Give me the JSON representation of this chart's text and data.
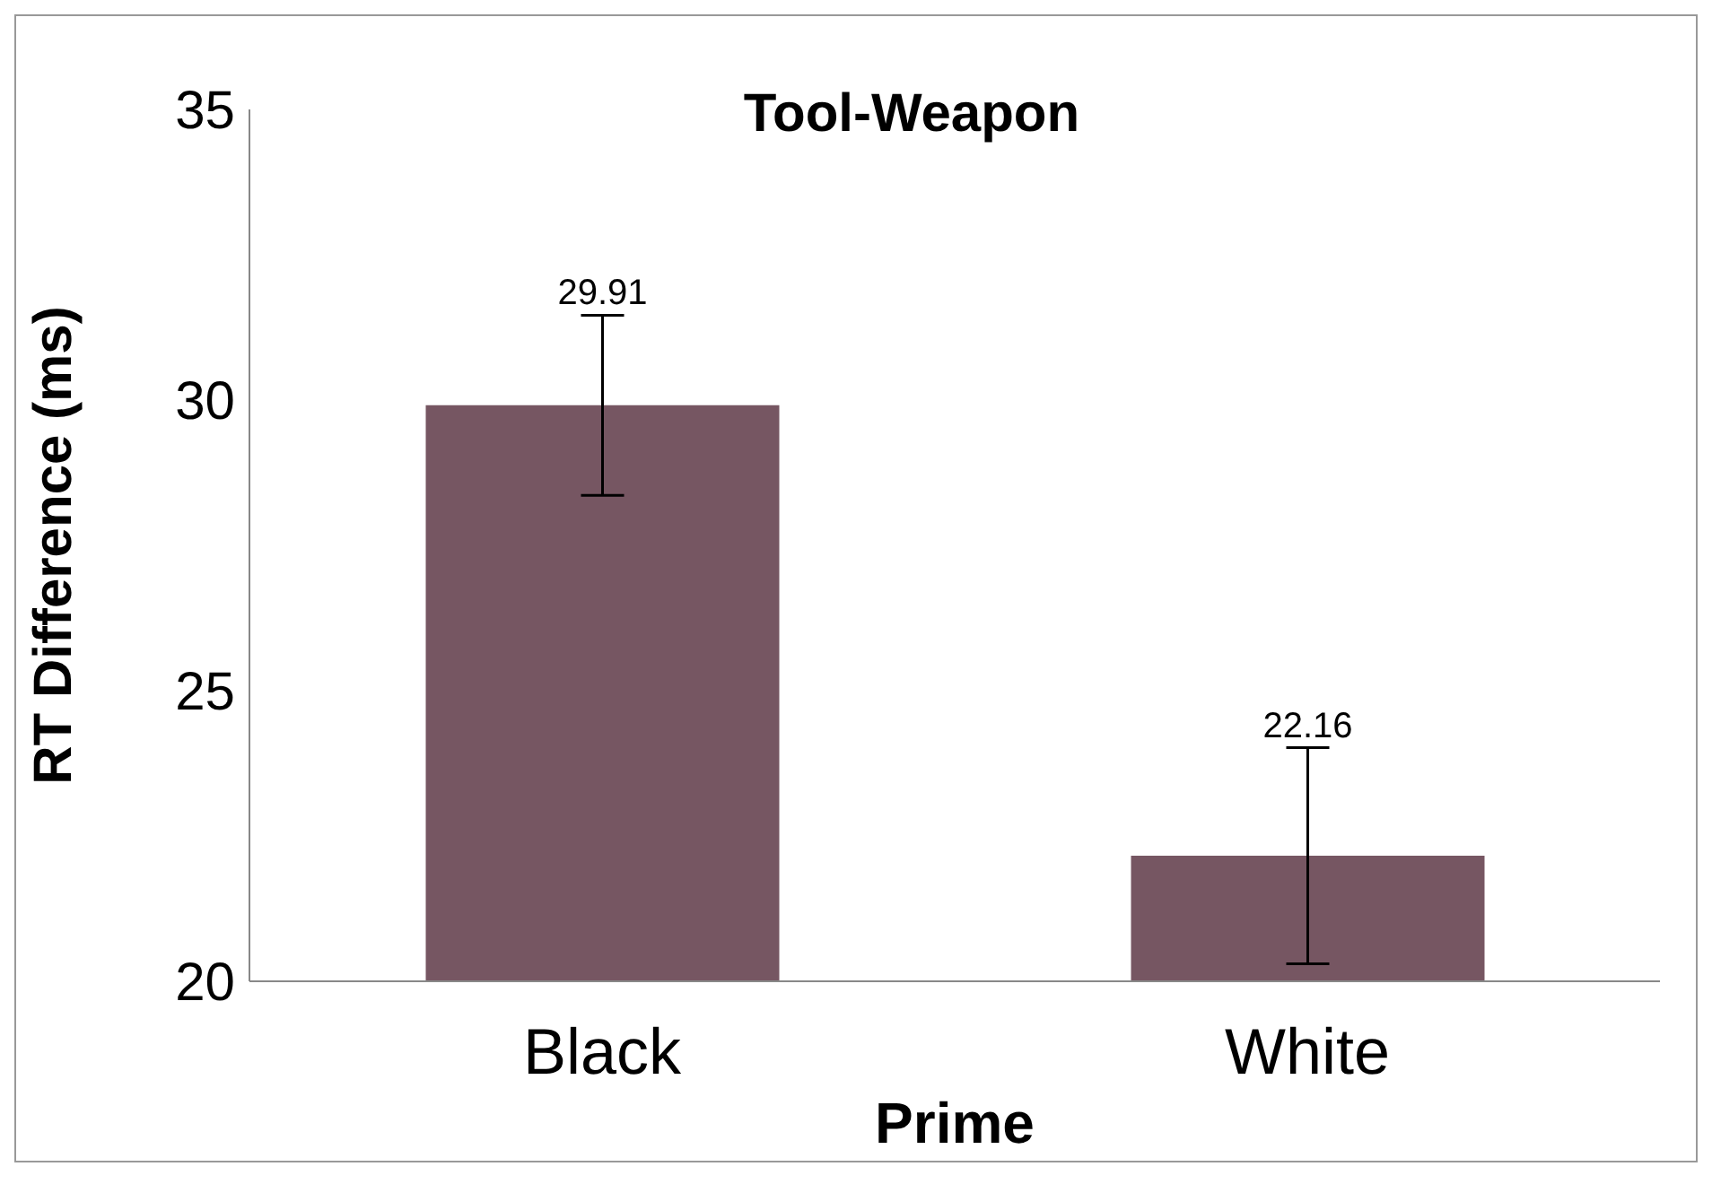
{
  "chart_data": {
    "type": "bar",
    "title": "Tool-Weapon",
    "xlabel": "Prime",
    "ylabel": "RT Difference  (ms)",
    "categories": [
      "Black",
      "White"
    ],
    "values": [
      29.91,
      22.16
    ],
    "errors": [
      1.55,
      1.86
    ],
    "color": "#765662",
    "data_labels": true,
    "ylim": [
      20,
      35
    ],
    "yticks": [
      20,
      25,
      30,
      35
    ],
    "grid": false,
    "legend": false
  }
}
